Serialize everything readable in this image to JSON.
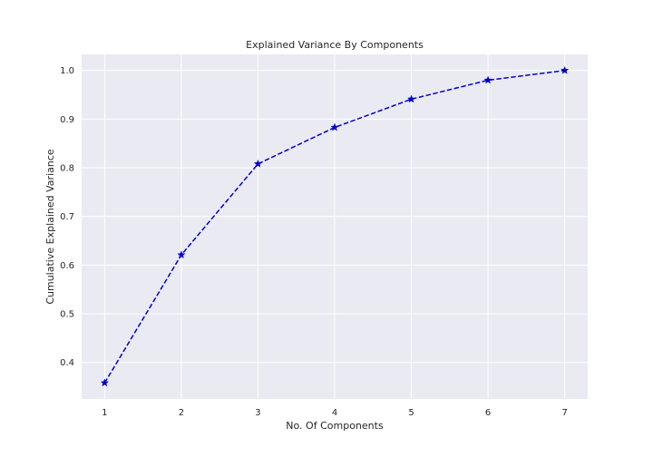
{
  "chart_data": {
    "type": "line",
    "title": "Explained Variance By Components",
    "xlabel": "No. Of Components",
    "ylabel": "Cumulative Explained Variance",
    "x": [
      1,
      2,
      3,
      4,
      5,
      6,
      7
    ],
    "x_tick_labels": [
      "1",
      "2",
      "3",
      "4",
      "5",
      "6",
      "7"
    ],
    "y_ticks": [
      0.4,
      0.5,
      0.6,
      0.7,
      0.8,
      0.9,
      1.0
    ],
    "y_tick_labels": [
      "0.4",
      "0.5",
      "0.6",
      "0.7",
      "0.8",
      "0.9",
      "1.0"
    ],
    "series": [
      {
        "values": [
          0.358,
          0.621,
          0.808,
          0.883,
          0.941,
          0.98,
          1.0
        ],
        "color": "#0000cc",
        "line_style": "dashed",
        "marker": "star"
      }
    ],
    "xlim": [
      0.7,
      7.3
    ],
    "ylim": [
      0.325,
      1.033
    ],
    "grid": true,
    "background_color": "#eaeaf2",
    "grid_color": "#ffffff"
  }
}
